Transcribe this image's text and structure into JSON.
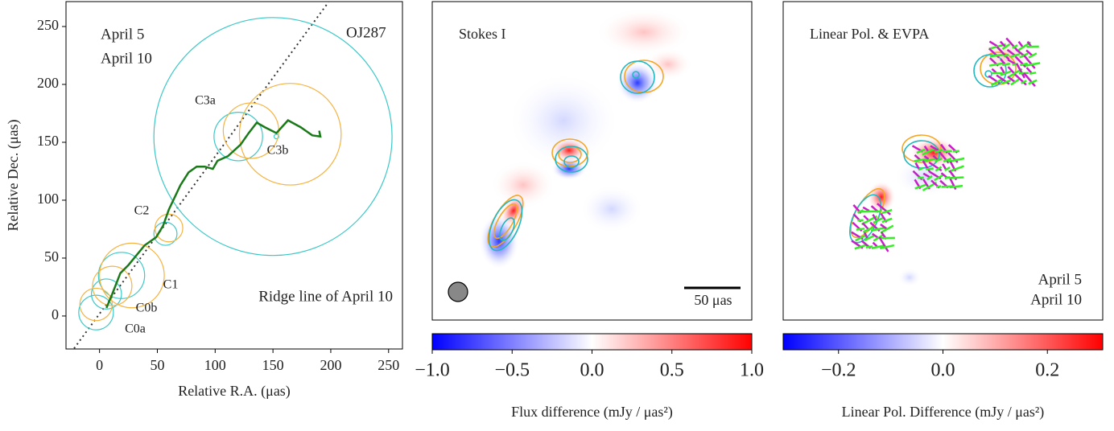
{
  "chart_data": [
    {
      "type": "circles",
      "xlabel": "Relative R.A. (μas)",
      "ylabel": "Relative Dec. (μas)",
      "xlim": [
        -29,
        262
      ],
      "ylim": [
        -28.5,
        271.5
      ],
      "xticks": [
        0,
        50,
        100,
        150,
        200,
        250
      ],
      "yticks": [
        0,
        50,
        100,
        150,
        200,
        250
      ],
      "annotation": "OJ287",
      "categories": [
        "C0a",
        "C0b",
        "C1",
        "C2",
        "C3a",
        "C3b",
        null
      ],
      "series": [
        {
          "name": "April 5",
          "color": "#3cc8c8",
          "x": [
            -3,
            6,
            19,
            57,
            120,
            153,
            150
          ],
          "y": [
            3,
            19,
            35,
            71,
            155,
            155,
            155
          ],
          "size": [
            15,
            13,
            20,
            10,
            21,
            2,
            103
          ]
        },
        {
          "name": "April 10",
          "color": "#f5b342",
          "x": [
            -3,
            11,
            28,
            60,
            131,
            165,
            null
          ],
          "y": [
            10,
            26,
            35,
            76,
            160,
            157,
            null
          ],
          "size": [
            14,
            17,
            28,
            12,
            24,
            44,
            null
          ]
        }
      ],
      "ridge": {
        "name": "Ridge line of April 10",
        "color": "#1a7a1a",
        "x": [
          6,
          11,
          18,
          25,
          39,
          49,
          55,
          60,
          70,
          77,
          84,
          91,
          98,
          102,
          111,
          122,
          129,
          136,
          143,
          153,
          163,
          174,
          184,
          191,
          190
        ],
        "y": [
          7,
          19,
          37,
          44,
          61,
          68,
          78,
          92,
          113,
          124,
          129,
          129,
          127,
          134,
          138,
          148,
          158,
          167,
          163,
          158,
          169,
          163,
          156,
          155,
          160
        ]
      },
      "reference_line": {
        "x": [
          -22,
          198
        ],
        "y": [
          -28,
          271
        ]
      }
    },
    {
      "type": "image",
      "text": "Stokes I",
      "scale_bar": "50 μas",
      "clim": [
        -1,
        1
      ],
      "cticks": [
        {
          "value": -1,
          "label": "−1.0"
        },
        {
          "value": -0.5,
          "label": "−0.5"
        },
        {
          "value": 0,
          "label": "0.0"
        },
        {
          "value": 0.5,
          "label": "0.5"
        },
        {
          "value": 1,
          "label": "1.0"
        }
      ],
      "colorbar_label": "Flux difference (mJy / μas²)"
    },
    {
      "type": "image",
      "text": "Linear Pol. & EVPA",
      "legend": [
        {
          "name": "April 5",
          "color": "#c71fc7"
        },
        {
          "name": "April 10",
          "color": "#33ee22"
        }
      ],
      "clim": [
        -0.306,
        0.306
      ],
      "cticks": [
        {
          "value": -0.2,
          "label": "−0.2"
        },
        {
          "value": 0,
          "label": "0.0"
        },
        {
          "value": 0.2,
          "label": "0.2"
        }
      ],
      "colorbar_label": "Linear Pol. Difference (mJy / μas²)"
    }
  ]
}
